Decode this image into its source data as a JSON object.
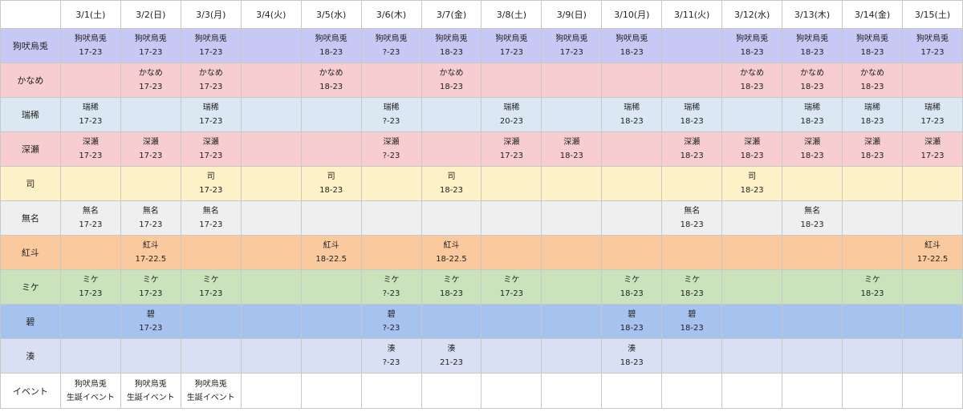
{
  "dates": [
    "3/1(土)",
    "3/2(日)",
    "3/3(月)",
    "3/4(火)",
    "3/5(水)",
    "3/6(木)",
    "3/7(金)",
    "3/8(土)",
    "3/9(日)",
    "3/10(月)",
    "3/11(火)",
    "3/12(水)",
    "3/13(木)",
    "3/14(金)",
    "3/15(土)"
  ],
  "rows": [
    {
      "name": "狗吠烏兎",
      "color": "#c7c8f4",
      "cells": [
        [
          "狗吠烏兎",
          "17-23"
        ],
        [
          "狗吠烏兎",
          "17-23"
        ],
        [
          "狗吠烏兎",
          "17-23"
        ],
        null,
        [
          "狗吠烏兎",
          "18-23"
        ],
        [
          "狗吠烏兎",
          "?-23"
        ],
        [
          "狗吠烏兎",
          "18-23"
        ],
        [
          "狗吠烏兎",
          "17-23"
        ],
        [
          "狗吠烏兎",
          "17-23"
        ],
        [
          "狗吠烏兎",
          "18-23"
        ],
        null,
        [
          "狗吠烏兎",
          "18-23"
        ],
        [
          "狗吠烏兎",
          "18-23"
        ],
        [
          "狗吠烏兎",
          "18-23"
        ],
        [
          "狗吠烏兎",
          "17-23"
        ]
      ]
    },
    {
      "name": "かなめ",
      "color": "#f8cdcf",
      "cells": [
        null,
        [
          "かなめ",
          "17-23"
        ],
        [
          "かなめ",
          "17-23"
        ],
        null,
        [
          "かなめ",
          "18-23"
        ],
        null,
        [
          "かなめ",
          "18-23"
        ],
        null,
        null,
        null,
        null,
        [
          "かなめ",
          "18-23"
        ],
        [
          "かなめ",
          "18-23"
        ],
        [
          "かなめ",
          "18-23"
        ],
        null
      ]
    },
    {
      "name": "瑞稀",
      "color": "#dbe8f4",
      "cells": [
        [
          "瑞稀",
          "17-23"
        ],
        null,
        [
          "瑞稀",
          "17-23"
        ],
        null,
        null,
        [
          "瑞稀",
          "?-23"
        ],
        null,
        [
          "瑞稀",
          "20-23"
        ],
        null,
        [
          "瑞稀",
          "18-23"
        ],
        [
          "瑞稀",
          "18-23"
        ],
        null,
        [
          "瑞稀",
          "18-23"
        ],
        [
          "瑞稀",
          "18-23"
        ],
        [
          "瑞稀",
          "17-23"
        ]
      ]
    },
    {
      "name": "深瀬",
      "color": "#f8cdcf",
      "cells": [
        [
          "深瀬",
          "17-23"
        ],
        [
          "深瀬",
          "17-23"
        ],
        [
          "深瀬",
          "17-23"
        ],
        null,
        null,
        [
          "深瀬",
          "?-23"
        ],
        null,
        [
          "深瀬",
          "17-23"
        ],
        [
          "深瀬",
          "18-23"
        ],
        null,
        [
          "深瀬",
          "18-23"
        ],
        [
          "深瀬",
          "18-23"
        ],
        [
          "深瀬",
          "18-23"
        ],
        [
          "深瀬",
          "18-23"
        ],
        [
          "深瀬",
          "17-23"
        ]
      ]
    },
    {
      "name": "司",
      "color": "#fdf1c7",
      "cells": [
        null,
        null,
        [
          "司",
          "17-23"
        ],
        null,
        [
          "司",
          "18-23"
        ],
        null,
        [
          "司",
          "18-23"
        ],
        null,
        null,
        null,
        null,
        [
          "司",
          "18-23"
        ],
        null,
        null,
        null
      ]
    },
    {
      "name": "無名",
      "color": "#efefef",
      "cells": [
        [
          "無名",
          "17-23"
        ],
        [
          "無名",
          "17-23"
        ],
        [
          "無名",
          "17-23"
        ],
        null,
        null,
        null,
        null,
        null,
        null,
        null,
        [
          "無名",
          "18-23"
        ],
        null,
        [
          "無名",
          "18-23"
        ],
        null,
        null
      ]
    },
    {
      "name": "紅斗",
      "color": "#fac99e",
      "cells": [
        null,
        [
          "紅斗",
          "17-22.5"
        ],
        null,
        null,
        [
          "紅斗",
          "18-22.5"
        ],
        null,
        [
          "紅斗",
          "18-22.5"
        ],
        null,
        null,
        null,
        null,
        null,
        null,
        null,
        [
          "紅斗",
          "17-22.5"
        ]
      ]
    },
    {
      "name": "ミケ",
      "color": "#cae3bc",
      "cells": [
        [
          "ミケ",
          "17-23"
        ],
        [
          "ミケ",
          "17-23"
        ],
        [
          "ミケ",
          "17-23"
        ],
        null,
        null,
        [
          "ミケ",
          "?-23"
        ],
        [
          "ミケ",
          "18-23"
        ],
        [
          "ミケ",
          "17-23"
        ],
        null,
        [
          "ミケ",
          "18-23"
        ],
        [
          "ミケ",
          "18-23"
        ],
        null,
        null,
        [
          "ミケ",
          "18-23"
        ],
        null
      ]
    },
    {
      "name": "碧",
      "color": "#a6c3f0",
      "cells": [
        null,
        [
          "碧",
          "17-23"
        ],
        null,
        null,
        null,
        [
          "碧",
          "?-23"
        ],
        null,
        null,
        null,
        [
          "碧",
          "18-23"
        ],
        [
          "碧",
          "18-23"
        ],
        null,
        null,
        null,
        null
      ]
    },
    {
      "name": "湊",
      "color": "#dae0f3",
      "cells": [
        null,
        null,
        null,
        null,
        null,
        [
          "湊",
          "?-23"
        ],
        [
          "湊",
          "21-23"
        ],
        null,
        null,
        [
          "湊",
          "18-23"
        ],
        null,
        null,
        null,
        null,
        null
      ]
    }
  ],
  "event_row": {
    "name": "イベント",
    "cells": [
      [
        "狗吠烏兎",
        "生誕イベント"
      ],
      [
        "狗吠烏兎",
        "生誕イベント"
      ],
      [
        "狗吠烏兎",
        "生誕イベント"
      ],
      null,
      null,
      null,
      null,
      null,
      null,
      null,
      null,
      null,
      null,
      null,
      null
    ]
  }
}
